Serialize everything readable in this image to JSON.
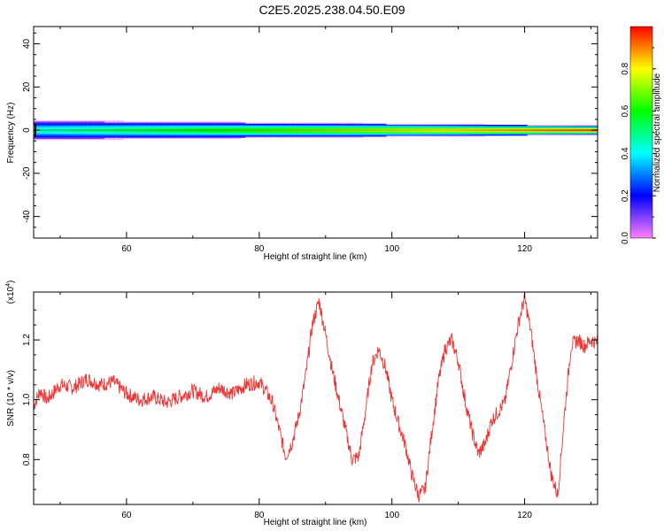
{
  "title": "C2E5.2025.238.04.50.E09",
  "chart_data": [
    {
      "type": "heatmap",
      "xlabel": "Height of straight line (km)",
      "ylabel": "Frequency (Hz)",
      "xlim": [
        46,
        131
      ],
      "ylim": [
        -50,
        48
      ],
      "xticks": [
        60,
        80,
        100,
        120
      ],
      "xtick_labels": [
        "60",
        "80",
        "100",
        "120"
      ],
      "yticks": [
        -40,
        -20,
        0,
        20,
        40
      ],
      "ytick_labels": [
        "-40",
        "-20",
        "0",
        "20",
        "40"
      ],
      "colorbar": {
        "label": "Normalized spectral amplitude",
        "range": [
          0,
          1
        ],
        "ticks": [
          0.0,
          0.2,
          0.4,
          0.6,
          0.8
        ],
        "tick_labels": [
          "0.0",
          "0.2",
          "0.4",
          "0.6",
          "0.8"
        ],
        "colors": [
          "#ff80ff",
          "#0000ff",
          "#00ffff",
          "#00ff00",
          "#ffff00",
          "#ff0000"
        ]
      },
      "band": {
        "center_hz": 0,
        "half_width_hz_start": 4,
        "half_width_hz_end": 2,
        "peak_amplitude_start": 0.45,
        "peak_amplitude_end": 0.95
      }
    },
    {
      "type": "line",
      "xlabel": "Height of straight line (km)",
      "ylabel": "SNR (10 * v/v)",
      "scale_label": "(x10",
      "scale_exponent": "4",
      "scale_close": ")",
      "xlim": [
        46,
        131
      ],
      "ylim": [
        0.65,
        1.36
      ],
      "xticks": [
        60,
        80,
        100,
        120
      ],
      "xtick_labels": [
        "60",
        "80",
        "100",
        "120"
      ],
      "yticks": [
        0.8,
        1.0,
        1.2
      ],
      "ytick_labels": [
        "0.8",
        "1.0",
        "1.2"
      ],
      "series": [
        {
          "color": "#ee3333",
          "x": [
            46,
            47,
            48,
            50,
            52,
            54,
            56,
            58,
            60,
            62,
            64,
            66,
            68,
            70,
            72,
            74,
            76,
            78,
            80,
            81,
            82,
            83,
            84,
            85,
            86,
            87,
            88,
            89,
            90,
            91,
            92,
            93,
            94,
            95,
            96,
            97,
            98,
            99,
            100,
            101,
            102,
            103,
            104,
            105,
            106,
            107,
            108,
            109,
            110,
            111,
            112,
            113,
            114,
            115,
            116,
            117,
            118,
            119,
            120,
            121,
            122,
            123,
            124,
            125,
            126,
            127,
            128,
            129,
            130,
            131
          ],
          "y": [
            0.98,
            1.03,
            1.0,
            1.05,
            1.04,
            1.07,
            1.05,
            1.06,
            1.02,
            1.0,
            1.01,
            0.99,
            1.01,
            1.03,
            1.01,
            1.04,
            1.02,
            1.05,
            1.06,
            1.03,
            0.99,
            0.9,
            0.81,
            0.86,
            0.95,
            1.08,
            1.25,
            1.33,
            1.22,
            1.1,
            1.0,
            0.9,
            0.8,
            0.81,
            0.96,
            1.12,
            1.17,
            1.11,
            1.0,
            0.92,
            0.85,
            0.75,
            0.68,
            0.7,
            0.89,
            1.06,
            1.17,
            1.2,
            1.13,
            1.0,
            0.9,
            0.82,
            0.85,
            0.93,
            0.96,
            0.99,
            1.12,
            1.25,
            1.34,
            1.22,
            1.05,
            0.9,
            0.75,
            0.68,
            0.95,
            1.18,
            1.2,
            1.18,
            1.2,
            1.19
          ]
        }
      ]
    }
  ]
}
